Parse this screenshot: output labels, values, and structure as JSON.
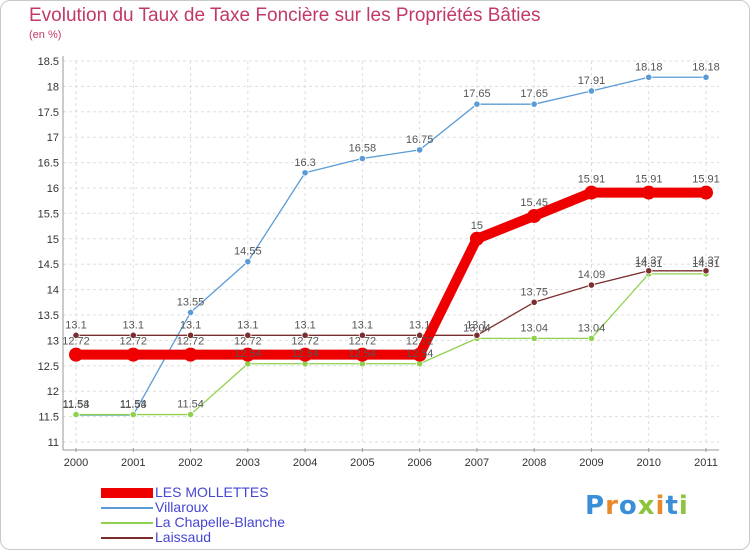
{
  "chart_data": {
    "type": "line",
    "title": "Evolution du Taux de Taxe Foncière sur les Propriétés Bâties",
    "ylabel": "(en %)",
    "x": [
      "2000",
      "2001",
      "2002",
      "2003",
      "2004",
      "2005",
      "2006",
      "2007",
      "2008",
      "2009",
      "2010",
      "2011"
    ],
    "ylim": [
      11,
      18.5
    ],
    "yticks": [
      "11",
      "11.5",
      "12",
      "12.5",
      "13",
      "13.5",
      "14",
      "14.5",
      "15",
      "15.5",
      "16",
      "16.5",
      "17",
      "17.5",
      "18",
      "18.5"
    ],
    "grid": true,
    "legend_position": "bottom-left",
    "series": [
      {
        "name": "LES MOLLETTES",
        "color": "#ee0000",
        "emphasis": true,
        "values": [
          12.72,
          12.72,
          12.72,
          12.72,
          12.72,
          12.72,
          12.72,
          15,
          15.45,
          15.91,
          15.91,
          15.91
        ]
      },
      {
        "name": "Villaroux",
        "color": "#5b9bd5",
        "emphasis": false,
        "values": [
          11.53,
          11.53,
          13.55,
          14.55,
          16.3,
          16.58,
          16.75,
          17.65,
          17.65,
          17.91,
          18.18,
          18.18
        ]
      },
      {
        "name": "La Chapelle-Blanche",
        "color": "#8fd14f",
        "emphasis": false,
        "values": [
          11.54,
          11.54,
          11.54,
          12.54,
          12.54,
          12.54,
          12.54,
          13.04,
          13.04,
          13.04,
          14.31,
          14.31
        ]
      },
      {
        "name": "Laissaud",
        "color": "#7b2e2e",
        "emphasis": false,
        "values": [
          13.1,
          13.1,
          13.1,
          13.1,
          13.1,
          13.1,
          13.1,
          13.1,
          13.75,
          14.09,
          14.37,
          14.37
        ]
      }
    ]
  },
  "logo": {
    "letters": [
      {
        "ch": "P",
        "color": "#3a8fd8"
      },
      {
        "ch": "r",
        "color": "#e8892b"
      },
      {
        "ch": "o",
        "color": "#3a8fd8"
      },
      {
        "ch": "x",
        "color": "#8cc43e"
      },
      {
        "ch": "i",
        "color": "#e8892b"
      },
      {
        "ch": "t",
        "color": "#3a8fd8"
      },
      {
        "ch": "i",
        "color": "#8cc43e"
      }
    ]
  }
}
